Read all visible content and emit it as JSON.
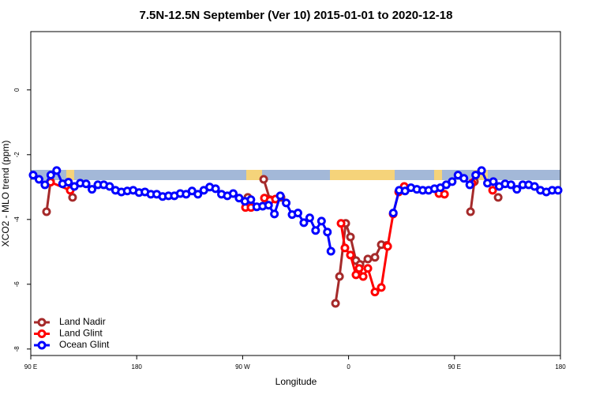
{
  "chart_data": {
    "type": "line",
    "title": "7.5N-12.5N September (Ver 10)   2015-01-01 to 2020-12-18",
    "xlabel": "Longitude",
    "ylabel": "XCO2 - MLO trend (ppm)",
    "xlim": [
      90,
      540
    ],
    "ylim": [
      -8.2,
      1.8
    ],
    "xticks": [
      {
        "value": 90,
        "label": "90 E"
      },
      180,
      {
        "value": 270,
        "label": "90 W"
      },
      {
        "value": 360,
        "label": "0"
      },
      {
        "value": 450,
        "label": "90 E"
      },
      {
        "value": 540,
        "label": "180"
      }
    ],
    "yticks": [
      -8,
      -6,
      -4,
      -2,
      0
    ],
    "legend": "bottom-left",
    "series": [
      {
        "name": "Land Nadir",
        "color": "#a52a2a",
        "x": [
          103.4,
          106.8,
          null,
          125.5,
          null,
          274.4,
          null,
          287.9,
          293.2,
          302.6,
          null,
          348.9,
          352.3,
          357.6,
          361.6,
          366.3,
          369.7,
          376.4,
          382.4,
          387.8,
          392.5,
          null,
          463.6,
          466.9,
          null,
          487.1
        ],
        "values": [
          -3.76,
          -2.83,
          null,
          -3.32,
          null,
          -3.32,
          null,
          -2.76,
          -3.39,
          -3.32,
          null,
          -6.59,
          -5.76,
          -4.12,
          -4.54,
          -5.27,
          -5.39,
          -5.22,
          -5.17,
          -4.78,
          -4.8,
          null,
          -3.76,
          -2.83,
          null,
          -3.32
        ]
      },
      {
        "name": "Land Glint",
        "color": "#ff0000",
        "x": [
          106.8,
          123.5,
          null,
          272.4,
          277.1,
          null,
          288.5,
          293.2,
          297.9,
          null,
          353.6,
          356.9,
          361.6,
          366.3,
          369.0,
          372.4,
          376.4,
          382.4,
          387.8,
          393.2,
          397.9,
          402.6,
          407.3,
          null,
          436.8,
          441.5,
          null,
          464.9,
          null,
          482.4
        ],
        "values": [
          -2.85,
          -3.1,
          null,
          -3.63,
          -3.63,
          null,
          -3.34,
          -3.41,
          -3.37,
          null,
          -4.12,
          -4.88,
          -5.1,
          -5.71,
          -5.51,
          -5.76,
          -5.51,
          -6.24,
          -6.1,
          -4.83,
          -3.83,
          -3.15,
          -2.98,
          null,
          -3.2,
          -3.22,
          null,
          -2.88,
          null,
          -3.1
        ]
      },
      {
        "name": "Ocean Glint",
        "color": "#0000ff",
        "x": [
          92,
          97,
          102,
          107,
          112,
          117,
          122,
          127,
          132,
          137,
          142,
          147,
          152,
          157,
          162,
          167,
          172,
          177,
          182,
          187,
          192,
          197,
          202,
          207,
          212,
          217,
          222,
          227,
          232,
          237,
          242,
          247,
          252,
          257,
          262,
          267,
          272,
          277,
          282,
          287,
          292,
          297,
          302,
          307,
          312,
          317,
          322,
          327,
          332,
          337,
          342,
          345,
          null,
          398,
          403,
          408,
          413,
          418,
          423,
          428,
          433,
          438,
          443,
          448,
          453,
          458,
          463,
          468,
          473,
          478,
          483,
          488,
          493,
          498,
          503,
          508,
          513,
          518,
          523,
          528,
          533,
          538
        ],
        "values": [
          -2.63,
          -2.76,
          -2.93,
          -2.63,
          -2.49,
          -2.9,
          -2.85,
          -2.98,
          -2.88,
          -2.9,
          -3.07,
          -2.93,
          -2.93,
          -2.98,
          -3.1,
          -3.15,
          -3.12,
          -3.1,
          -3.17,
          -3.15,
          -3.22,
          -3.22,
          -3.29,
          -3.27,
          -3.27,
          -3.2,
          -3.22,
          -3.12,
          -3.22,
          -3.1,
          -3.0,
          -3.05,
          -3.22,
          -3.27,
          -3.2,
          -3.34,
          -3.44,
          -3.39,
          -3.61,
          -3.59,
          -3.56,
          -3.83,
          -3.27,
          -3.49,
          -3.85,
          -3.8,
          -4.1,
          -3.95,
          -4.34,
          -4.05,
          -4.39,
          -4.98,
          null,
          -3.8,
          -3.1,
          -3.12,
          -3.02,
          -3.07,
          -3.1,
          -3.1,
          -3.05,
          -3.02,
          -2.93,
          -2.83,
          -2.63,
          -2.73,
          -2.93,
          -2.63,
          -2.49,
          -2.88,
          -2.83,
          -2.98,
          -2.9,
          -2.93,
          -3.07,
          -2.93,
          -2.93,
          -2.98,
          -3.1,
          -3.15,
          -3.1,
          -3.1
        ]
      }
    ]
  }
}
